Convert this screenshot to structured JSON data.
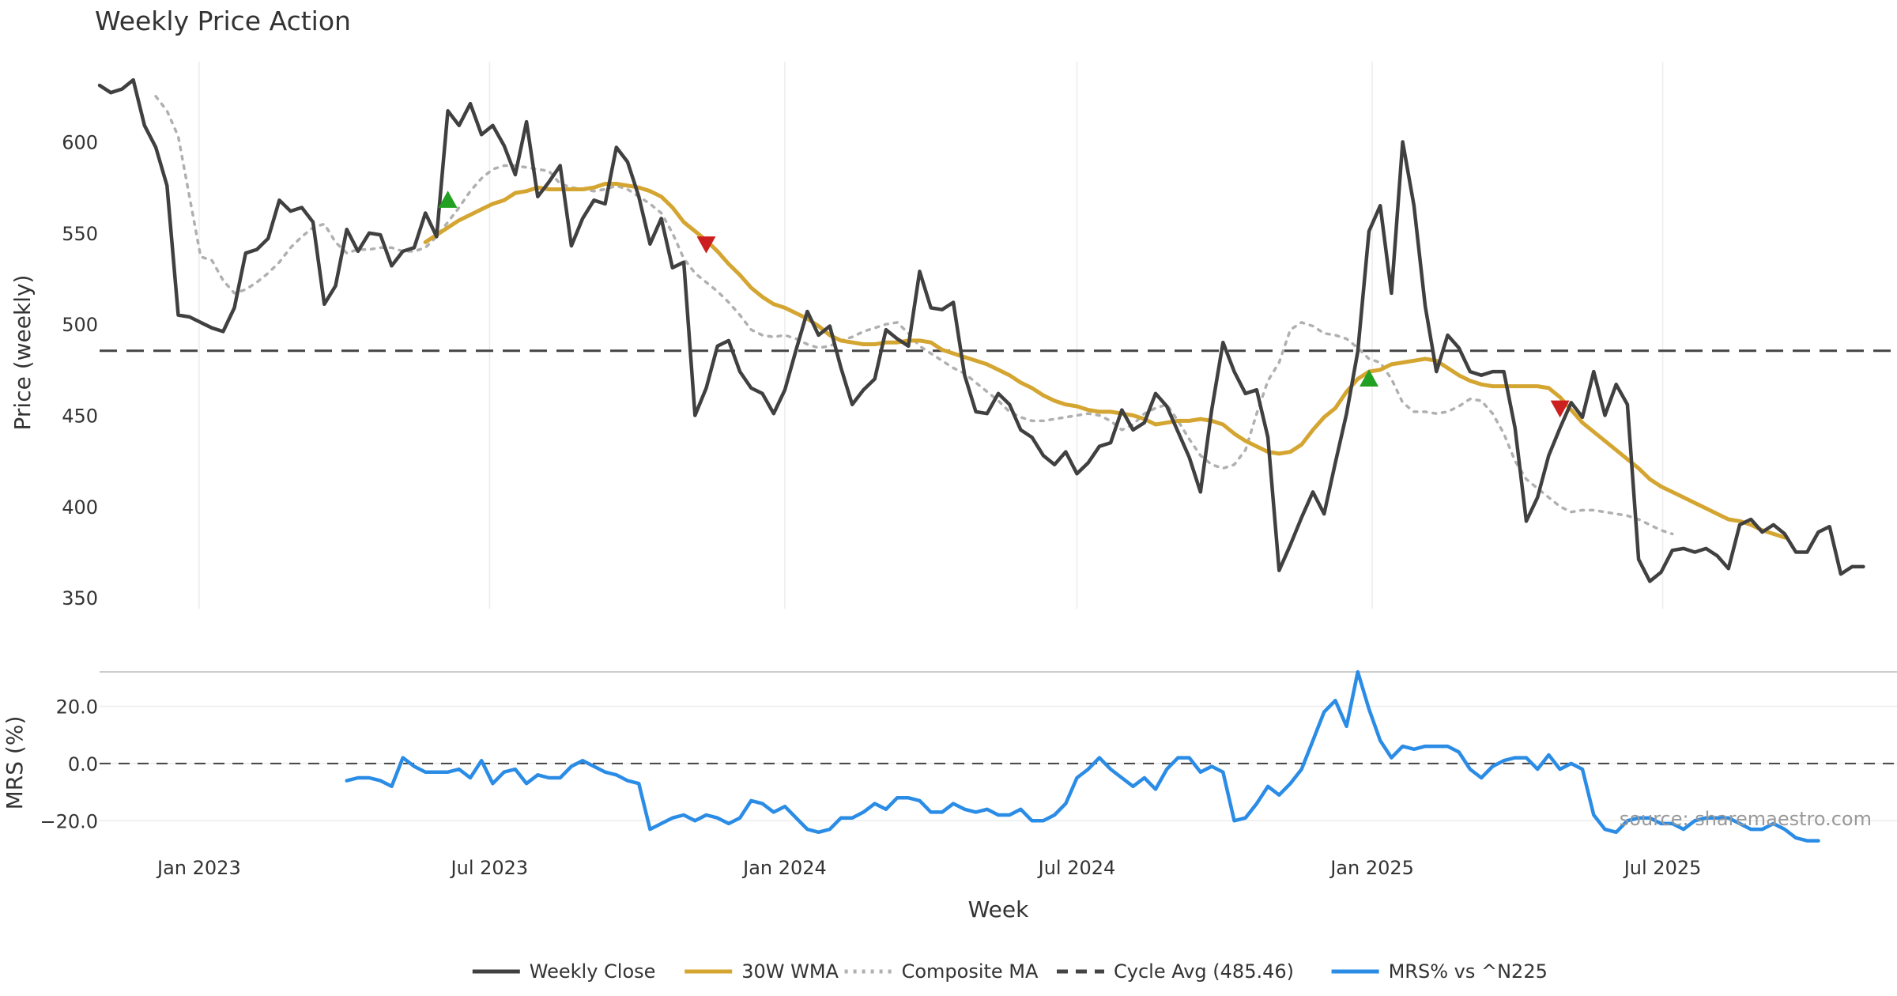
{
  "chart_data": [
    {
      "type": "line",
      "title": "Weekly Price Action",
      "ylabel": "Price (weekly)",
      "xlabel": "Week",
      "ylim": [
        344,
        644
      ],
      "yticks": [
        350,
        400,
        450,
        500,
        550,
        600
      ],
      "xlim": [
        "2022-10-31",
        "2025-11-24"
      ],
      "xticks": [
        {
          "date": "2023-01-01",
          "label": "Jan 2023"
        },
        {
          "date": "2023-07-01",
          "label": "Jul 2023"
        },
        {
          "date": "2024-01-01",
          "label": "Jan 2024"
        },
        {
          "date": "2024-07-01",
          "label": "Jul 2024"
        },
        {
          "date": "2025-01-01",
          "label": "Jan 2025"
        },
        {
          "date": "2025-07-01",
          "label": "Jul 2025"
        }
      ],
      "grid": true,
      "reference_line": {
        "name": "Cycle Avg (485.46)",
        "value": 485.46
      },
      "series": [
        {
          "name": "Weekly Close",
          "color": "#404040",
          "style": "solid",
          "start": "2022-10-31",
          "values": [
            631,
            627,
            629,
            634,
            609,
            597,
            576,
            505,
            504,
            501,
            498,
            496,
            509,
            539,
            541,
            547,
            568,
            562,
            564,
            556,
            511,
            521,
            552,
            540,
            550,
            549,
            532,
            540,
            542,
            561,
            548,
            617,
            609,
            621,
            604,
            609,
            598,
            582,
            611,
            570,
            578,
            587,
            543,
            558,
            568,
            566,
            597,
            589,
            570,
            544,
            558,
            531,
            534,
            450,
            465,
            488,
            491,
            474,
            465,
            462,
            451,
            464,
            486,
            507,
            494,
            499,
            476,
            456,
            464,
            470,
            497,
            492,
            488,
            529,
            509,
            508,
            512,
            472,
            452,
            451,
            462,
            456,
            442,
            438,
            428,
            423,
            430,
            418,
            424,
            433,
            435,
            453,
            442,
            446,
            462,
            455,
            441,
            427,
            408,
            453,
            490,
            474,
            462,
            464,
            438,
            365,
            379,
            394,
            408,
            396,
            424,
            451,
            485,
            551,
            565,
            517,
            600,
            565,
            510,
            474,
            494,
            487,
            474,
            472,
            474,
            474,
            443,
            392,
            405,
            428,
            443,
            457,
            449,
            474,
            450,
            467,
            456,
            371,
            359,
            364,
            376,
            377,
            375,
            377,
            373,
            366,
            390,
            393,
            386,
            390,
            385,
            375,
            375,
            386,
            389,
            363,
            367,
            367
          ]
        },
        {
          "name": "30W WMA",
          "color": "#d4a530",
          "style": "solid",
          "start": "2023-05-22",
          "values": [
            545,
            549,
            553,
            557,
            560,
            563,
            566,
            568,
            572,
            573,
            575,
            574,
            574,
            574,
            574,
            575,
            577,
            577,
            576,
            575,
            573,
            570,
            564,
            556,
            551,
            546,
            540,
            533,
            527,
            520,
            515,
            511,
            509,
            506,
            503,
            499,
            494,
            491,
            490,
            489,
            489,
            490,
            490,
            491,
            491,
            490,
            486,
            484,
            482,
            480,
            478,
            475,
            472,
            468,
            465,
            461,
            458,
            456,
            455,
            453,
            452,
            452,
            451,
            450,
            448,
            445,
            446,
            447,
            447,
            448,
            447,
            445,
            440,
            436,
            433,
            430,
            429,
            430,
            434,
            442,
            449,
            454,
            463,
            470,
            474,
            475,
            478,
            479,
            480,
            481,
            480,
            476,
            472,
            469,
            467,
            466,
            466,
            466,
            466,
            466,
            465,
            460,
            453,
            446,
            441,
            436,
            431,
            426,
            421,
            415,
            411,
            408,
            405,
            402,
            399,
            396,
            393,
            392,
            390,
            387,
            385,
            383
          ]
        },
        {
          "name": "Composite MA",
          "color": "#b0b0b0",
          "style": "dotted",
          "start": "2022-12-05",
          "values": [
            625,
            617,
            603,
            570,
            537,
            535,
            524,
            517,
            519,
            523,
            528,
            534,
            542,
            548,
            553,
            555,
            545,
            539,
            541,
            541,
            542,
            542,
            540,
            540,
            542,
            548,
            556,
            564,
            573,
            580,
            585,
            587,
            587,
            586,
            585,
            584,
            577,
            575,
            574,
            573,
            574,
            576,
            574,
            570,
            566,
            561,
            550,
            536,
            528,
            523,
            518,
            512,
            505,
            497,
            494,
            493,
            494,
            492,
            489,
            487,
            488,
            491,
            493,
            496,
            498,
            500,
            501,
            495,
            488,
            484,
            480,
            476,
            473,
            468,
            463,
            458,
            452,
            449,
            447,
            447,
            448,
            449,
            450,
            451,
            450,
            447,
            442,
            445,
            451,
            454,
            456,
            447,
            437,
            428,
            423,
            421,
            423,
            431,
            451,
            469,
            479,
            497,
            501,
            499,
            495,
            494,
            492,
            487,
            481,
            479,
            470,
            457,
            452,
            452,
            451,
            452,
            455,
            459,
            458,
            451,
            440,
            425,
            415,
            410,
            405,
            400,
            397,
            398,
            398,
            397,
            396,
            395,
            393,
            390,
            387,
            385
          ]
        },
        {
          "name": "Cycle Avg (485.46)",
          "color": "#444444",
          "style": "dashed"
        }
      ],
      "markers": [
        {
          "type": "buy",
          "shape": "triangle-up",
          "color": "#22a022",
          "date": "2023-06-05",
          "value": 568
        },
        {
          "type": "sell",
          "shape": "triangle-down",
          "color": "#cc1f1f",
          "date": "2023-11-13",
          "value": 544
        },
        {
          "type": "buy",
          "shape": "triangle-up",
          "color": "#22a022",
          "date": "2024-12-30",
          "value": 470
        },
        {
          "type": "sell",
          "shape": "triangle-down",
          "color": "#cc1f1f",
          "date": "2025-04-28",
          "value": 454
        }
      ]
    },
    {
      "type": "line",
      "ylabel": "MRS (%)",
      "xlabel": "Week",
      "ylim": [
        -26,
        32
      ],
      "yticks": [
        {
          "value": -20,
          "label": "−20.0"
        },
        {
          "value": 0,
          "label": "0.0"
        },
        {
          "value": 20,
          "label": "20.0"
        }
      ],
      "reference_line": {
        "value": 0
      },
      "series": [
        {
          "name": "MRS% vs ^N225",
          "color": "#2b8ce6",
          "style": "solid",
          "start": "2023-04-03",
          "values": [
            -6,
            -5,
            -5,
            -6,
            -8,
            2,
            -1,
            -3,
            -3,
            -3,
            -2,
            -5,
            1,
            -7,
            -3,
            -2,
            -7,
            -4,
            -5,
            -5,
            -1,
            1,
            -1,
            -3,
            -4,
            -6,
            -7,
            -23,
            -21,
            -19,
            -18,
            -20,
            -18,
            -19,
            -21,
            -19,
            -13,
            -14,
            -17,
            -15,
            -19,
            -23,
            -24,
            -23,
            -19,
            -19,
            -17,
            -14,
            -16,
            -12,
            -12,
            -13,
            -17,
            -17,
            -14,
            -16,
            -17,
            -16,
            -18,
            -18,
            -16,
            -20,
            -20,
            -18,
            -14,
            -5,
            -2,
            2,
            -2,
            -5,
            -8,
            -5,
            -9,
            -2,
            2,
            2,
            -3,
            -1,
            -3,
            -20,
            -19,
            -14,
            -8,
            -11,
            -7,
            -2,
            8,
            18,
            22,
            13,
            32,
            19,
            8,
            2,
            6,
            5,
            6,
            6,
            6,
            4,
            -2,
            -5,
            -1,
            1,
            2,
            2,
            -2,
            3,
            -2,
            0,
            -2,
            -18,
            -23,
            -24,
            -20,
            -19,
            -19,
            -21,
            -21,
            -23,
            -20,
            -19,
            -19,
            -19,
            -21,
            -23,
            -23,
            -21,
            -23,
            -26,
            -27,
            -27
          ]
        }
      ]
    }
  ],
  "legend": {
    "placement": "bottom-center",
    "items": [
      {
        "label": "Weekly Close",
        "color": "#404040",
        "style": "solid"
      },
      {
        "label": "30W WMA",
        "color": "#d4a530",
        "style": "solid"
      },
      {
        "label": "Composite MA",
        "color": "#b0b0b0",
        "style": "dotted"
      },
      {
        "label": "Cycle Avg (485.46)",
        "color": "#444444",
        "style": "dashed"
      },
      {
        "label": "MRS% vs ^N225",
        "color": "#2b8ce6",
        "style": "solid"
      }
    ]
  },
  "source": "source: sharemaestro.com"
}
